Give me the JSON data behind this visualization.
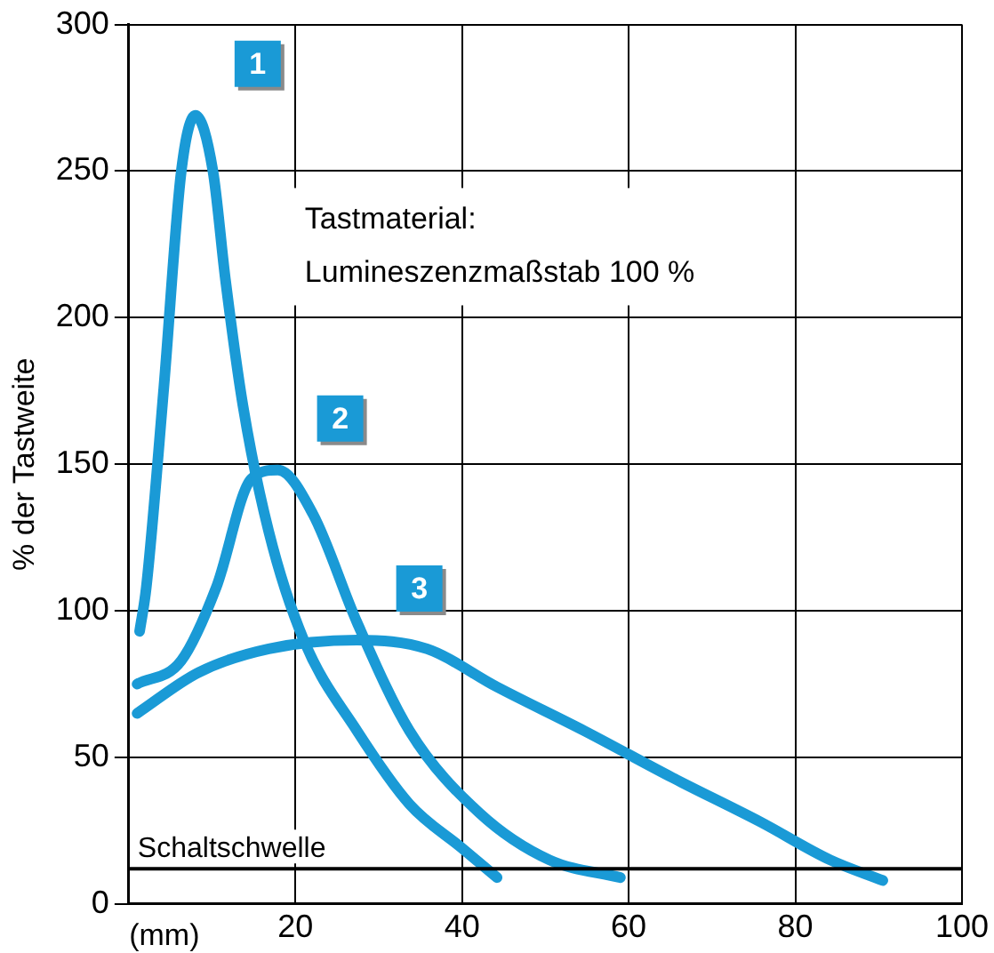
{
  "chart_data": {
    "type": "line",
    "xlabel": "(mm)",
    "ylabel": "% der Tastweite",
    "xlim": [
      0,
      100
    ],
    "xticks": [
      20,
      40,
      60,
      80,
      100
    ],
    "ylim": [
      0,
      300
    ],
    "yticks": [
      0,
      50,
      100,
      150,
      200,
      250,
      300
    ],
    "grid": true,
    "legend": false,
    "marker": "none",
    "line_style": "solid",
    "series": [
      {
        "name": "1",
        "color": "#1a9ad6",
        "x": [
          1.3,
          2.1,
          4.2,
          6.3,
          8,
          10.1,
          11.6,
          13.7,
          16.8,
          21,
          27.4,
          33.7,
          40,
          44.2
        ],
        "values": [
          93,
          108,
          176,
          250,
          269,
          250,
          213,
          170,
          127,
          90,
          59,
          34,
          19,
          9
        ]
      },
      {
        "name": "2",
        "color": "#1a9ad6",
        "x": [
          1,
          6.3,
          10.5,
          14.7,
          17.9,
          22.1,
          27.4,
          33.7,
          42.1,
          50.5,
          59
        ],
        "values": [
          75,
          83,
          108,
          145,
          148,
          133,
          96,
          59,
          31,
          15,
          9
        ]
      },
      {
        "name": "3",
        "color": "#1a9ad6",
        "x": [
          1,
          8.4,
          16.8,
          27.4,
          35.8,
          44.2,
          54.7,
          65.3,
          75.8,
          84.2,
          90.5
        ],
        "values": [
          65,
          79,
          87,
          90,
          87,
          74,
          59,
          43,
          28,
          15,
          8
        ]
      }
    ],
    "ref_lines": [
      {
        "axis": "y",
        "value": 12,
        "label": "Schaltschwelle",
        "color": "#000000"
      }
    ],
    "annotations": [
      "Tastmaterial:",
      "Lumineszenzmaßstab 100 %"
    ]
  }
}
